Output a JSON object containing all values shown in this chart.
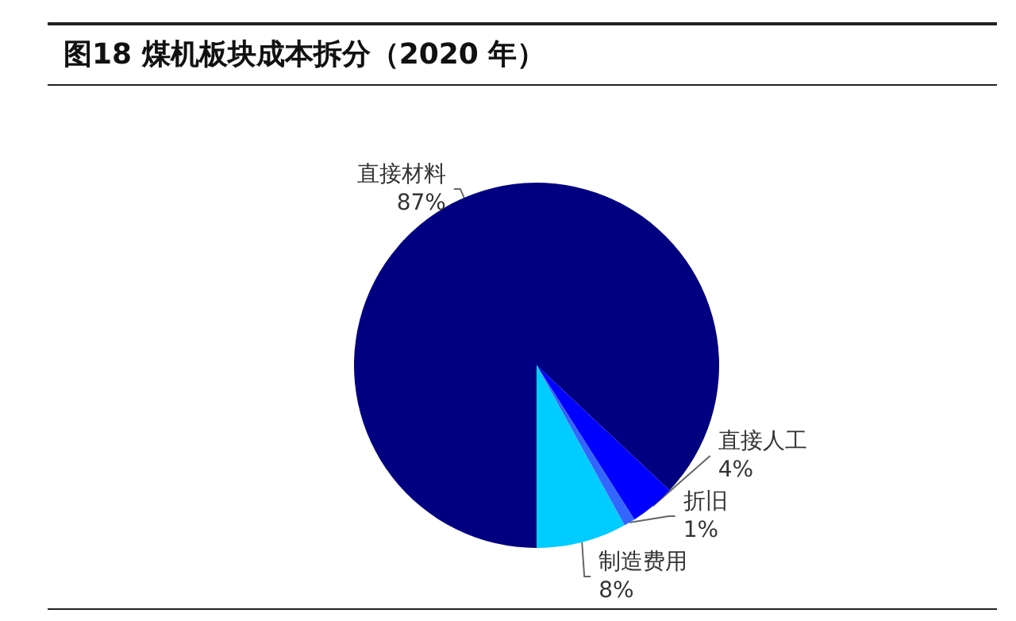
{
  "chart_data": {
    "type": "pie",
    "title": "图18 煤机板块成本拆分（2020 年）",
    "categories": [
      "直接材料",
      "直接人工",
      "折旧",
      "制造费用"
    ],
    "values": [
      87,
      4,
      1,
      8
    ],
    "colors": [
      "#000080",
      "#0000ff",
      "#3366ff",
      "#00ccff"
    ],
    "value_labels": [
      "87%",
      "4%",
      "1%",
      "8%"
    ],
    "legend": false
  }
}
